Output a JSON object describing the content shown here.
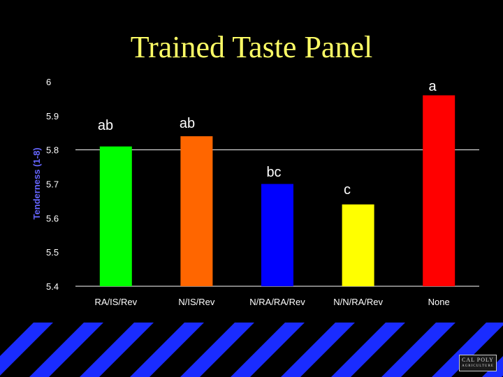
{
  "slide": {
    "title": "Trained Taste Panel",
    "title_color": "#FFFF66",
    "background": "#000000",
    "stripe_color": "#1A2CFF",
    "logo": {
      "line1": "CAL POLY",
      "line2": "AGRICULTURE"
    }
  },
  "chart_data": {
    "type": "bar",
    "title": "Trained Taste Panel",
    "ylabel": "Tenderness (1-8)",
    "xlabel": "",
    "ylim": [
      5.4,
      6.0
    ],
    "yticks": [
      {
        "value": 6.0,
        "label": "6"
      },
      {
        "value": 5.9,
        "label": "5.9"
      },
      {
        "value": 5.8,
        "label": "5.8"
      },
      {
        "value": 5.7,
        "label": "5.7"
      },
      {
        "value": 5.6,
        "label": "5.6"
      },
      {
        "value": 5.5,
        "label": "5.5"
      },
      {
        "value": 5.4,
        "label": "5.4"
      }
    ],
    "gridlines": [
      5.8,
      5.4
    ],
    "categories": [
      "RA/IS/Rev",
      "N/IS/Rev",
      "N/RA/RA/Rev",
      "N/N/RA/Rev",
      "None"
    ],
    "values": [
      5.81,
      5.84,
      5.7,
      5.64,
      5.96
    ],
    "colors": [
      "#00FF00",
      "#FF6600",
      "#0000FF",
      "#FFFF00",
      "#FF0000"
    ],
    "annotations": [
      "ab",
      "ab",
      "bc",
      "c",
      "a"
    ],
    "text_color": "#FFFFFF",
    "ylabel_color": "#6666FF"
  }
}
